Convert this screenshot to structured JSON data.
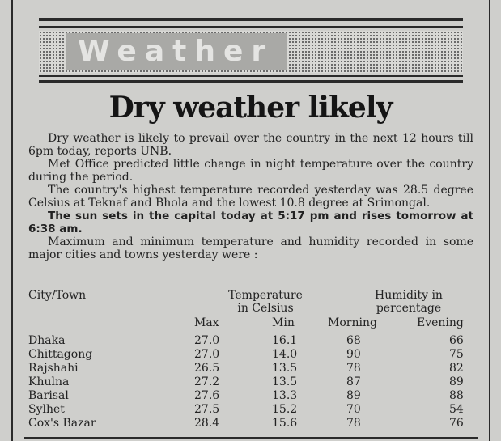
{
  "banner": {
    "label": "Weather"
  },
  "headline": "Dry weather likely",
  "paragraphs": [
    "Dry weather is likely to prevail over the country in the next 12 hours till 6pm today, reports UNB.",
    "Met Office predicted little change in night temperature over the country during the period.",
    "The country's highest temperature recorded yesterday was 28.5 degree Celsius at Teknaf and Bhola and the lowest 10.8 degree at Srimongal.",
    "The sun sets in the capital today at 5:17 pm and rises tomorrow at 6:38 am.",
    "Maximum and minimum temperature and humidity recorded in some major cities and towns yesterday were :"
  ],
  "table": {
    "city_header": "City/Town",
    "temp_header_1": "Temperature",
    "temp_header_2": "in Celsius",
    "hum_header_1": "Humidity in",
    "hum_header_2": "percentage",
    "sub_max": "Max",
    "sub_min": "Min",
    "sub_morning": "Morning",
    "sub_evening": "Evening",
    "rows": [
      {
        "city": "Dhaka",
        "max": "27.0",
        "min": "16.1",
        "morning": "68",
        "evening": "66"
      },
      {
        "city": "Chittagong",
        "max": "27.0",
        "min": "14.0",
        "morning": "90",
        "evening": "75"
      },
      {
        "city": "Rajshahi",
        "max": "26.5",
        "min": "13.5",
        "morning": "78",
        "evening": "82"
      },
      {
        "city": "Khulna",
        "max": "27.2",
        "min": "13.5",
        "morning": "87",
        "evening": "89"
      },
      {
        "city": "Barisal",
        "max": "27.6",
        "min": "13.3",
        "morning": "89",
        "evening": "88"
      },
      {
        "city": "Sylhet",
        "max": "27.5",
        "min": "15.2",
        "morning": "70",
        "evening": "54"
      },
      {
        "city": "Cox's Bazar",
        "max": "28.4",
        "min": "15.6",
        "morning": "78",
        "evening": "76"
      }
    ]
  }
}
